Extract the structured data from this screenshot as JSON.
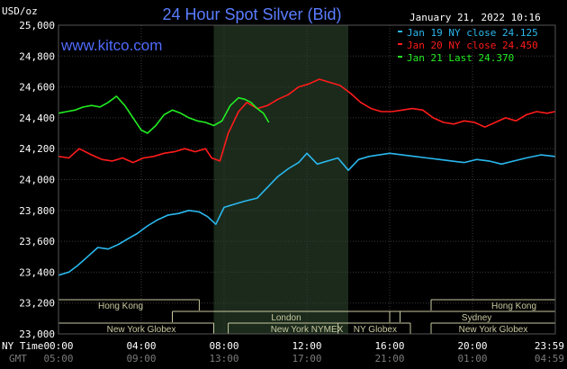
{
  "chart_data": {
    "type": "line",
    "title": "24 Hour Spot Silver (Bid)",
    "site": "www.kitco.com",
    "date_label": "January 21, 2022 10:16",
    "ylabel": "USD/oz",
    "ylim": [
      23.0,
      25.0
    ],
    "y_ticks": [
      "25,000",
      "24,800",
      "24,600",
      "24,400",
      "24,200",
      "24,000",
      "23,800",
      "23,600",
      "23,400",
      "23,200",
      "23,000"
    ],
    "x_ticks": [
      "00:00",
      "04:00",
      "08:00",
      "12:00",
      "16:00",
      "20:00",
      "23:59"
    ],
    "gmt_ticks": [
      "05:00",
      "09:00",
      "13:00",
      "17:00",
      "21:00",
      "01:00",
      "04:59"
    ],
    "row_label_ny": "NY Time",
    "row_label_gmt": "GMT",
    "shaded_hours": [
      7.5,
      14.0
    ],
    "grid": true,
    "legend_position": "top-right",
    "series": [
      {
        "name": "Jan 19 NY close 24.125",
        "color": "#2ab8ee",
        "x": [
          0,
          0.5,
          0.9,
          1.4,
          1.9,
          2.4,
          2.9,
          3.4,
          3.8,
          4.3,
          4.8,
          5.3,
          5.8,
          6.3,
          6.8,
          7.2,
          7.6,
          8.0,
          8.5,
          9.0,
          9.6,
          10.1,
          10.6,
          11.1,
          11.6,
          12.0,
          12.5,
          13.0,
          13.5,
          14.0,
          14.5,
          15.0,
          15.5,
          16.0,
          16.6,
          17.2,
          17.8,
          18.4,
          19.0,
          19.6,
          20.2,
          20.8,
          21.4,
          22.0,
          22.6,
          23.3,
          23.98
        ],
        "y": [
          23.38,
          23.4,
          23.44,
          23.5,
          23.56,
          23.55,
          23.58,
          23.62,
          23.65,
          23.7,
          23.74,
          23.77,
          23.78,
          23.8,
          23.79,
          23.76,
          23.71,
          23.82,
          23.84,
          23.86,
          23.88,
          23.95,
          24.02,
          24.07,
          24.11,
          24.17,
          24.1,
          24.12,
          24.14,
          24.06,
          24.13,
          24.15,
          24.16,
          24.17,
          24.16,
          24.15,
          24.14,
          24.13,
          24.12,
          24.11,
          24.13,
          24.12,
          24.1,
          24.12,
          24.14,
          24.16,
          24.15
        ]
      },
      {
        "name": "Jan 20 NY close 24.450",
        "color": "#ff1b1b",
        "x": [
          0,
          0.5,
          1.0,
          1.6,
          2.1,
          2.6,
          3.1,
          3.6,
          4.1,
          4.6,
          5.1,
          5.6,
          6.1,
          6.6,
          7.1,
          7.4,
          7.8,
          8.2,
          8.7,
          9.1,
          9.6,
          10.1,
          10.6,
          11.1,
          11.6,
          12.1,
          12.6,
          13.1,
          13.6,
          14.1,
          14.6,
          15.1,
          15.6,
          16.1,
          16.6,
          17.1,
          17.6,
          18.1,
          18.6,
          19.1,
          19.6,
          20.1,
          20.6,
          21.1,
          21.6,
          22.1,
          22.6,
          23.1,
          23.6,
          23.98
        ],
        "y": [
          24.15,
          24.14,
          24.2,
          24.16,
          24.13,
          24.12,
          24.14,
          24.11,
          24.14,
          24.15,
          24.17,
          24.18,
          24.2,
          24.18,
          24.2,
          24.14,
          24.12,
          24.3,
          24.44,
          24.5,
          24.46,
          24.48,
          24.52,
          24.55,
          24.6,
          24.62,
          24.65,
          24.63,
          24.61,
          24.56,
          24.5,
          24.46,
          24.44,
          24.44,
          24.45,
          24.46,
          24.45,
          24.4,
          24.37,
          24.36,
          24.38,
          24.37,
          24.34,
          24.37,
          24.4,
          24.38,
          24.42,
          24.44,
          24.43,
          24.44
        ]
      },
      {
        "name": "Jan 21 Last 24.370",
        "color": "#22ee22",
        "x": [
          0,
          0.4,
          0.8,
          1.2,
          1.6,
          2.0,
          2.4,
          2.8,
          3.2,
          3.6,
          4.0,
          4.3,
          4.7,
          5.1,
          5.5,
          5.9,
          6.3,
          6.7,
          7.1,
          7.5,
          7.9,
          8.3,
          8.7,
          9.0,
          9.3,
          9.6,
          9.9,
          10.16
        ],
        "y": [
          24.43,
          24.44,
          24.45,
          24.47,
          24.48,
          24.47,
          24.5,
          24.54,
          24.48,
          24.4,
          24.32,
          24.3,
          24.35,
          24.42,
          24.45,
          24.43,
          24.4,
          24.38,
          24.37,
          24.35,
          24.38,
          24.48,
          24.53,
          24.52,
          24.5,
          24.46,
          24.43,
          24.37
        ]
      }
    ]
  },
  "markets": [
    {
      "label": "Hong Kong",
      "row": 0,
      "start": 0,
      "end": 6.8,
      "label_at": 3.0
    },
    {
      "label": "London",
      "row": 1,
      "start": 5.5,
      "end": 16.5,
      "label_at": 11.0
    },
    {
      "label": "New York Globex",
      "row": 2,
      "start": 0,
      "end": 7.5,
      "label_at": 4.0
    },
    {
      "label": "New York NYMEX",
      "row": 2,
      "start": 8.2,
      "end": 13.5,
      "label_at": 12.0
    },
    {
      "label": "NY Globex",
      "row": 2,
      "start": 13.5,
      "end": 17.0,
      "label_at": 15.3
    },
    {
      "label": "Hong Kong",
      "row": 0,
      "start": 18.0,
      "end": 24.0,
      "label_at": 22.0
    },
    {
      "label": "Sydney",
      "row": 1,
      "start": 16.0,
      "end": 24.0,
      "label_at": 20.2
    },
    {
      "label": "New York Globex",
      "row": 2,
      "start": 18.0,
      "end": 24.0,
      "label_at": 21.0
    }
  ]
}
